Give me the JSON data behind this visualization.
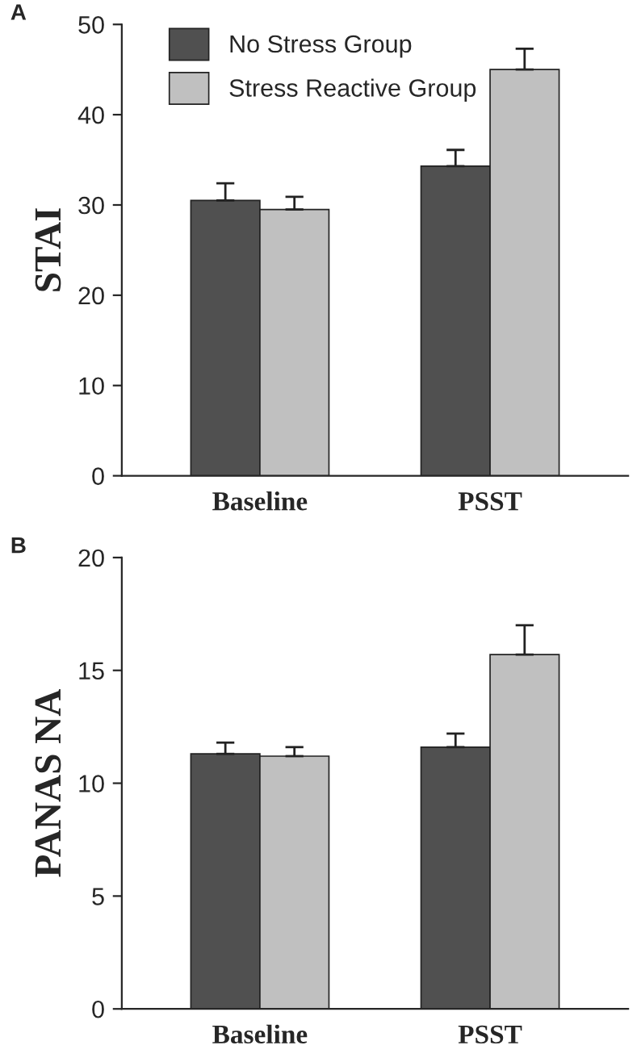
{
  "chart_data": [
    {
      "type": "bar",
      "ylabel": "STAI",
      "annotations": [
        "A"
      ],
      "categories": [
        "Baseline",
        "PSST"
      ],
      "ylim": [
        0,
        50
      ],
      "yticks": [
        0,
        10,
        20,
        30,
        40,
        50
      ],
      "grid": false,
      "legend": "top left",
      "series": [
        {
          "name": "No Stress Group",
          "color": "#505050",
          "values": [
            30.5,
            34.3
          ],
          "errors": [
            [
              30.5,
              32.4
            ],
            [
              34.3,
              36.1
            ]
          ]
        },
        {
          "name": "Stress Reactive Group",
          "color": "#c0c0c0",
          "values": [
            29.5,
            45.0
          ],
          "errors": [
            [
              29.5,
              30.9
            ],
            [
              45.0,
              47.3
            ]
          ]
        }
      ]
    },
    {
      "type": "bar",
      "ylabel": "PANAS NA",
      "annotations": [
        "B"
      ],
      "categories": [
        "Baseline",
        "PSST"
      ],
      "ylim": [
        0,
        20
      ],
      "yticks": [
        0,
        5,
        10,
        15,
        20
      ],
      "grid": false,
      "series": [
        {
          "color": "#505050",
          "values": [
            11.3,
            11.6
          ],
          "errors": [
            [
              11.3,
              11.8
            ],
            [
              11.6,
              12.2
            ]
          ]
        },
        {
          "color": "#c0c0c0",
          "values": [
            11.2,
            15.7
          ],
          "errors": [
            [
              11.2,
              11.6
            ],
            [
              15.7,
              17.0
            ]
          ]
        }
      ]
    }
  ]
}
